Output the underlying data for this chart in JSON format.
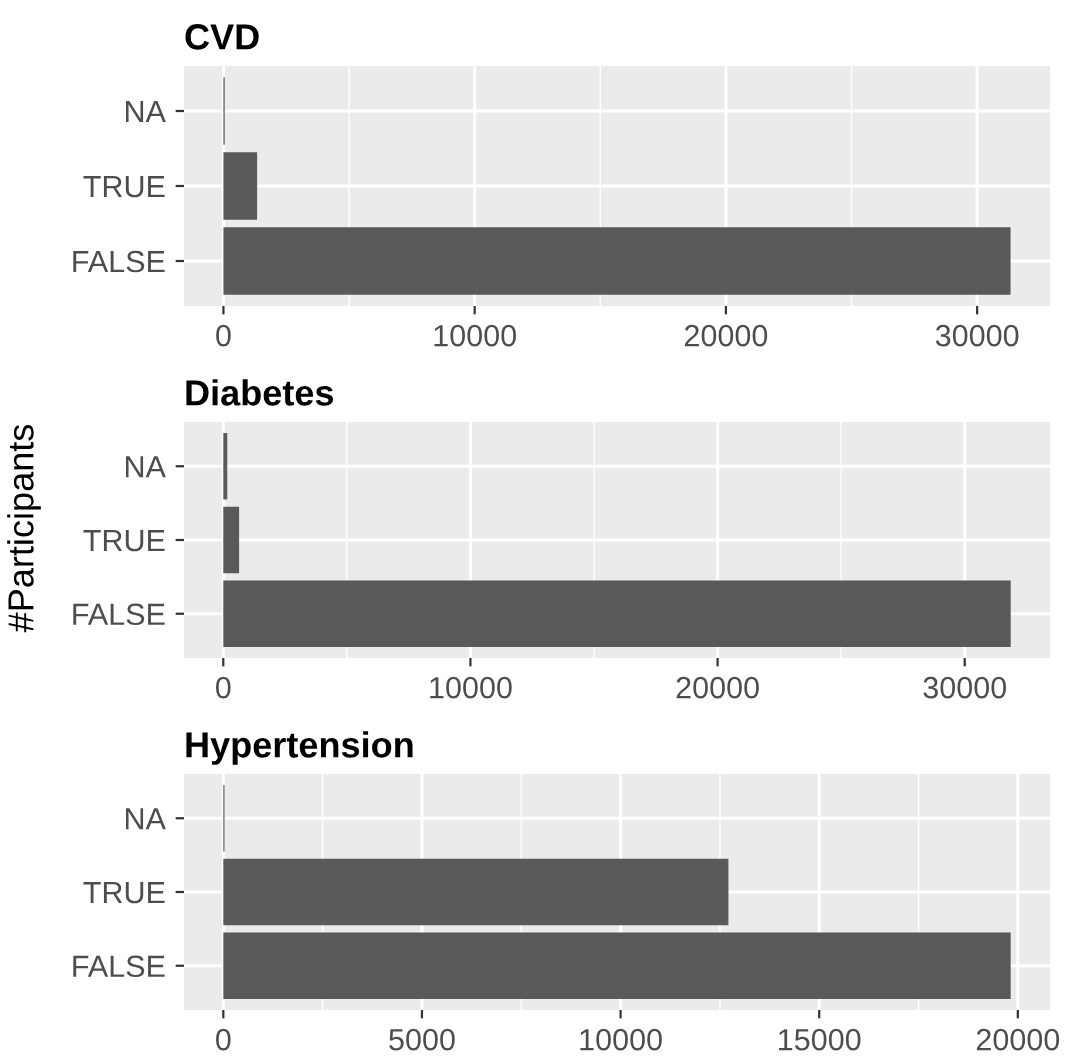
{
  "chart_data": [
    {
      "type": "bar",
      "orientation": "horizontal",
      "title": "CVD",
      "categories": [
        "NA",
        "TRUE",
        "FALSE"
      ],
      "values": [
        50,
        1340,
        31330
      ],
      "color": "#595959",
      "xlim": [
        -1570,
        32900
      ],
      "xticks": [
        0,
        10000,
        20000,
        30000
      ],
      "grid": true
    },
    {
      "type": "bar",
      "orientation": "horizontal",
      "title": "Diabetes",
      "ylabel": "#Participants",
      "categories": [
        "NA",
        "TRUE",
        "FALSE"
      ],
      "values": [
        160,
        640,
        31860
      ],
      "color": "#595959",
      "xlim": [
        -1590,
        33450
      ],
      "xticks": [
        0,
        10000,
        20000,
        30000
      ],
      "grid": true
    },
    {
      "type": "bar",
      "orientation": "horizontal",
      "title": "Hypertension",
      "categories": [
        "NA",
        "TRUE",
        "FALSE"
      ],
      "values": [
        30,
        12715,
        19820
      ],
      "color": "#595959",
      "xlim": [
        -990,
        20810
      ],
      "xticks": [
        0,
        5000,
        10000,
        15000,
        20000
      ],
      "grid": true
    }
  ]
}
